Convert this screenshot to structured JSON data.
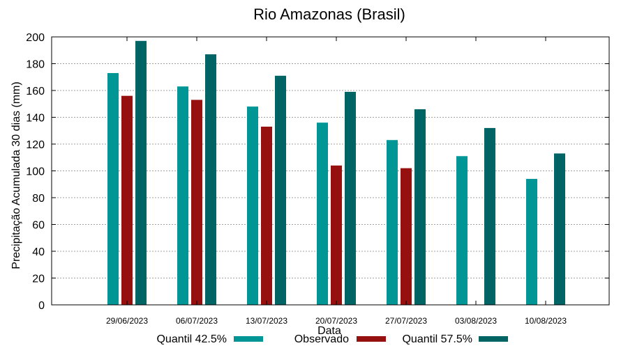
{
  "chart_data": {
    "type": "bar",
    "title": "Rio Amazonas (Brasil)",
    "xlabel": "Data",
    "ylabel": "Precipitação Acumulada 30 dias (mm)",
    "ylim": [
      0,
      200
    ],
    "yticks": [
      0,
      20,
      40,
      60,
      80,
      100,
      120,
      140,
      160,
      180,
      200
    ],
    "grid": true,
    "legend_position": "bottom",
    "categories": [
      "29/06/2023",
      "06/07/2023",
      "13/07/2023",
      "20/07/2023",
      "27/07/2023",
      "03/08/2023",
      "10/08/2023"
    ],
    "series": [
      {
        "name": "Quantil 42.5%",
        "color": "#009696",
        "values": [
          173,
          163,
          148,
          136,
          123,
          111,
          94
        ]
      },
      {
        "name": "Observado",
        "color": "#961010",
        "values": [
          156,
          153,
          133,
          104,
          102,
          null,
          null
        ]
      },
      {
        "name": "Quantil 57.5%",
        "color": "#006464",
        "values": [
          197,
          187,
          171,
          159,
          146,
          132,
          113
        ]
      }
    ]
  }
}
